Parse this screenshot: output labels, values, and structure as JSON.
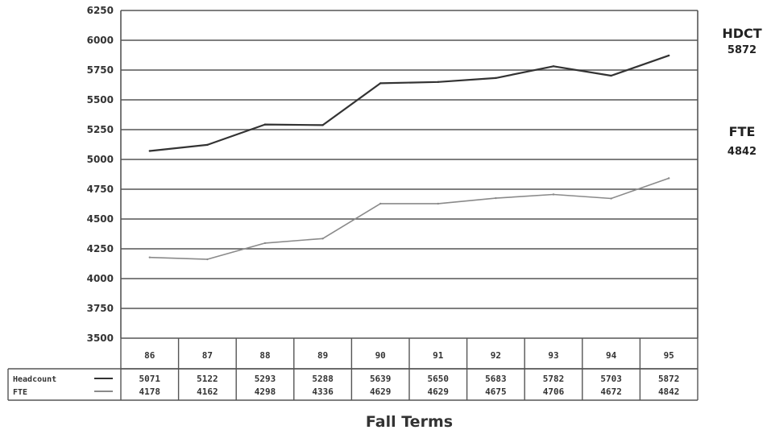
{
  "chart_data": {
    "type": "line",
    "title": "",
    "xlabel": "Fall Terms",
    "ylabel": "",
    "ylim": [
      3500,
      6250
    ],
    "yticks": [
      3500,
      3750,
      4000,
      4250,
      4500,
      4750,
      5000,
      5250,
      5500,
      5750,
      6000,
      6250
    ],
    "categories": [
      "86",
      "87",
      "88",
      "89",
      "90",
      "91",
      "92",
      "93",
      "94",
      "95"
    ],
    "grid": true,
    "legend": "data table below x-axis",
    "series": [
      {
        "name": "Headcount",
        "color": "#333333",
        "values": [
          5071,
          5122,
          5293,
          5288,
          5639,
          5650,
          5683,
          5782,
          5703,
          5872
        ]
      },
      {
        "name": "FTE",
        "color": "#8a8a8a",
        "values": [
          4178,
          4162,
          4298,
          4336,
          4629,
          4629,
          4675,
          4706,
          4672,
          4842
        ]
      }
    ],
    "annotations": [
      {
        "label": "HDCT",
        "value": "5872"
      },
      {
        "label": "FTE",
        "value": "4842"
      }
    ]
  }
}
